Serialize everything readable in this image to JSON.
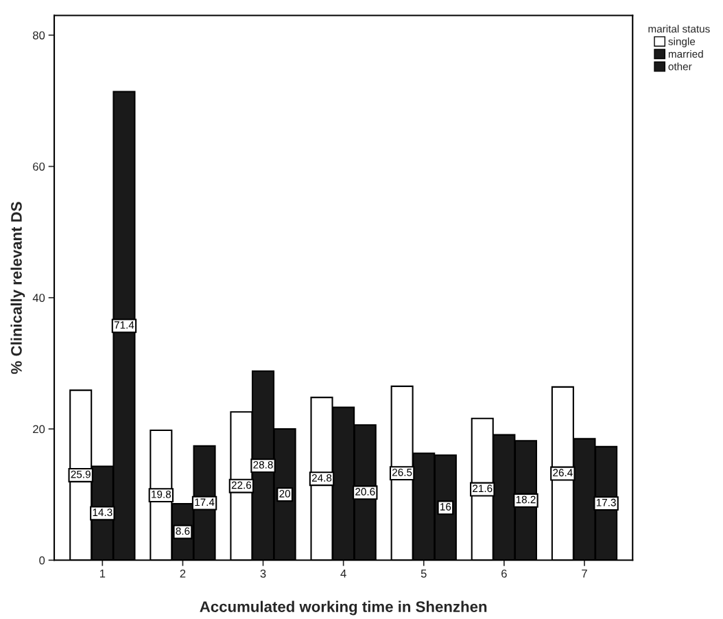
{
  "chart_data": {
    "type": "bar",
    "xlabel": "Accumulated working time in Shenzhen",
    "ylabel": "% Clinically relevant DS",
    "legend_title": "marital status",
    "legend": "top right",
    "categories": [
      "1",
      "2",
      "3",
      "4",
      "5",
      "6",
      "7"
    ],
    "series": [
      {
        "name": "single",
        "color": "#ffffff",
        "values": [
          25.9,
          19.8,
          22.6,
          24.8,
          26.5,
          21.6,
          26.4
        ],
        "value_labels": [
          "25.9",
          "19.8",
          "22.6",
          "24.8",
          "26.5",
          "21.6",
          "26.4"
        ]
      },
      {
        "name": "married",
        "color": "#1a1a1a",
        "values": [
          14.3,
          8.6,
          28.8,
          23.3,
          16.3,
          19.1,
          18.5
        ],
        "value_labels": [
          "14.3",
          "8.6",
          "28.8",
          null,
          null,
          null,
          null
        ]
      },
      {
        "name": "other",
        "color": "#1a1a1a",
        "values": [
          71.4,
          17.4,
          20,
          20.6,
          16,
          18.2,
          17.3
        ],
        "value_labels": [
          "71.4",
          "17.4",
          "20",
          "20.6",
          "16",
          "18.2",
          "17.3"
        ]
      }
    ],
    "ylim": [
      0,
      83
    ],
    "yticks": [
      0,
      20,
      40,
      60,
      80
    ],
    "grid": false
  }
}
